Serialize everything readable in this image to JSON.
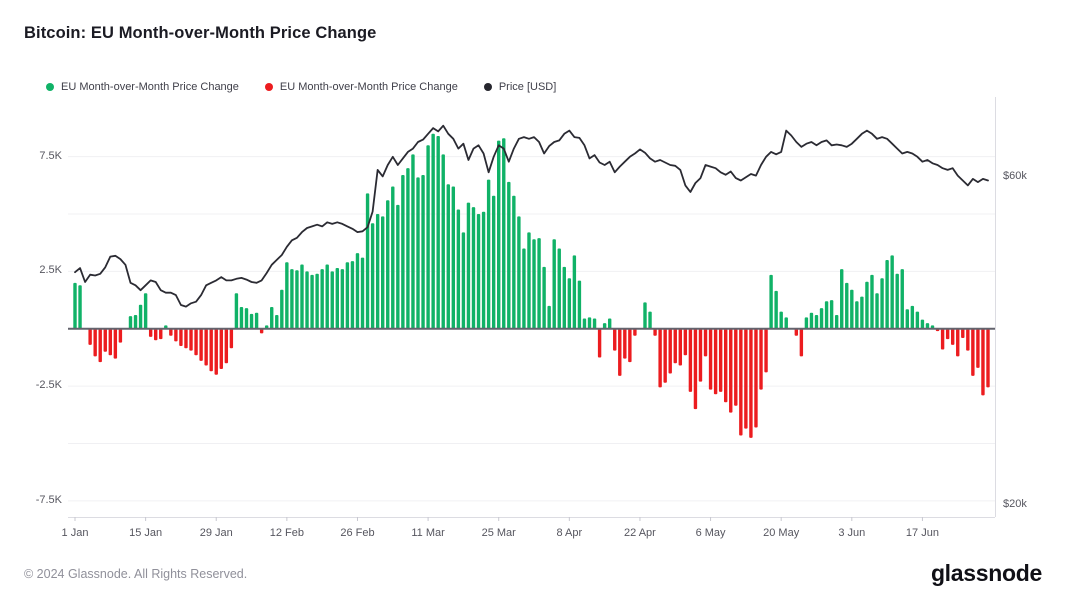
{
  "header": {
    "title": "Bitcoin: EU Month-over-Month Price Change"
  },
  "legend": [
    {
      "label": "EU Month-over-Month Price Change",
      "color": "#10b267"
    },
    {
      "label": "EU Month-over-Month Price Change",
      "color": "#ec1c1f"
    },
    {
      "label": "Price [USD]",
      "color": "#26262e"
    }
  ],
  "footer": {
    "copyright": "© 2024 Glassnode. All Rights Reserved.",
    "brand": "glassnode"
  },
  "chart_data": {
    "type": "bar+line",
    "title": "Bitcoin: EU Month-over-Month Price Change",
    "bar_series_name": "EU Month-over-Month Price Change",
    "line_series_name": "Price [USD]",
    "date_range": "1 Jan 2024 – 30 Jun 2024 (daily)",
    "grid": true,
    "legend_position": "top-left",
    "colors": {
      "positive": "#10b267",
      "negative": "#ec1c1f",
      "price_line": "#2b2b33",
      "zero_line": "#63636d",
      "gridline": "#f0f0f3",
      "axis_line": "#dcdce2",
      "tick": "#c8c8d0"
    },
    "left_axis": {
      "title": "MoM price change [USD]",
      "range": [
        -8.2,
        10.1
      ],
      "grid_values": [
        7.5,
        5,
        2.5,
        -2.5,
        -5,
        -7.5
      ],
      "ticks": [
        {
          "label": "7.5K",
          "value": 7.5
        },
        {
          "label": "2.5K",
          "value": 2.5
        },
        {
          "label": "-2.5K",
          "value": -2.5
        },
        {
          "label": "-7.5K",
          "value": -7.5
        }
      ]
    },
    "right_axis": {
      "title": "Price [USD]",
      "range": [
        18.5,
        69.8
      ],
      "ticks": [
        {
          "label": "$60k",
          "value": 60
        },
        {
          "label": "$20k",
          "value": 20
        }
      ]
    },
    "x_axis": {
      "ticks": [
        {
          "label": "1 Jan",
          "day": 0
        },
        {
          "label": "15 Jan",
          "day": 14
        },
        {
          "label": "29 Jan",
          "day": 28
        },
        {
          "label": "12 Feb",
          "day": 42
        },
        {
          "label": "26 Feb",
          "day": 56
        },
        {
          "label": "11 Mar",
          "day": 70
        },
        {
          "label": "25 Mar",
          "day": 84
        },
        {
          "label": "8 Apr",
          "day": 98
        },
        {
          "label": "22 Apr",
          "day": 112
        },
        {
          "label": "6 May",
          "day": 126
        },
        {
          "label": "20 May",
          "day": 140
        },
        {
          "label": "3 Jun",
          "day": 154
        },
        {
          "label": "17 Jun",
          "day": 168
        }
      ]
    },
    "bar_values_k": [
      2.0,
      1.9,
      0,
      -0.7,
      -1.2,
      -1.45,
      -1.0,
      -1.15,
      -1.3,
      -0.6,
      0,
      0.55,
      0.6,
      1.05,
      1.55,
      -0.35,
      -0.5,
      -0.45,
      0.15,
      -0.3,
      -0.55,
      -0.75,
      -0.85,
      -0.95,
      -1.15,
      -1.4,
      -1.6,
      -1.85,
      -2.0,
      -1.75,
      -1.5,
      -0.85,
      1.55,
      0.95,
      0.9,
      0.65,
      0.7,
      -0.2,
      0.15,
      0.95,
      0.6,
      1.7,
      2.9,
      2.6,
      2.55,
      2.8,
      2.5,
      2.35,
      2.4,
      2.6,
      2.8,
      2.5,
      2.65,
      2.6,
      2.9,
      2.95,
      3.3,
      3.1,
      5.9,
      4.6,
      5.0,
      4.9,
      5.6,
      6.2,
      5.4,
      6.7,
      7.0,
      7.6,
      6.6,
      6.7,
      8.0,
      8.5,
      8.4,
      7.6,
      6.3,
      6.2,
      5.2,
      4.2,
      5.5,
      5.3,
      5.0,
      5.1,
      6.5,
      5.8,
      8.2,
      8.3,
      6.4,
      5.8,
      4.9,
      3.5,
      4.2,
      3.9,
      3.95,
      2.7,
      1.0,
      3.9,
      3.5,
      2.7,
      2.2,
      3.2,
      2.1,
      0.45,
      0.5,
      0.45,
      -1.25,
      0.25,
      0.45,
      -0.95,
      -2.05,
      -1.3,
      -1.45,
      -0.3,
      0,
      1.15,
      0.75,
      -0.3,
      -2.55,
      -2.35,
      -1.95,
      -1.5,
      -1.6,
      -1.15,
      -2.75,
      -3.5,
      -2.3,
      -1.2,
      -2.65,
      -2.85,
      -2.75,
      -3.2,
      -3.65,
      -3.35,
      -4.65,
      -4.35,
      -4.75,
      -4.3,
      -2.65,
      -1.9,
      2.35,
      1.65,
      0.75,
      0.5,
      0,
      -0.3,
      -1.2,
      0.5,
      0.7,
      0.6,
      0.9,
      1.2,
      1.25,
      0.6,
      2.6,
      2.0,
      1.7,
      1.2,
      1.4,
      2.05,
      2.35,
      1.55,
      2.2,
      3.0,
      3.2,
      2.4,
      2.6,
      0.85,
      1.0,
      0.75,
      0.4,
      0.25,
      0.15,
      -0.1,
      -0.9,
      -0.45,
      -0.7,
      -1.2,
      -0.4,
      -0.95,
      -2.05,
      -1.7,
      -2.9,
      -2.55
    ],
    "price_usd_k": [
      48.4,
      48.9,
      47.2,
      48.1,
      48.0,
      48.2,
      49.0,
      50.3,
      50.4,
      50.0,
      49.3,
      47.1,
      46.8,
      46.2,
      46.8,
      47.4,
      47.2,
      46.2,
      45.9,
      45.9,
      45.6,
      44.4,
      44.2,
      44.6,
      44.8,
      45.6,
      46.8,
      47.1,
      47.4,
      47.8,
      47.4,
      47.4,
      47.6,
      47.7,
      47.5,
      47.2,
      47.1,
      47.4,
      48.3,
      49.3,
      49.9,
      50.5,
      51.5,
      52.3,
      52.6,
      53.3,
      53.8,
      54.0,
      54.2,
      54.0,
      54.5,
      54.3,
      54.5,
      54.3,
      54.0,
      53.7,
      53.3,
      53.4,
      53.9,
      55.8,
      60.9,
      60.1,
      61.5,
      62.5,
      61.5,
      62.3,
      63.1,
      63.5,
      64.3,
      64.6,
      65.3,
      66.0,
      65.6,
      66.3,
      65.3,
      64.7,
      63.5,
      64.1,
      62.1,
      63.5,
      63.9,
      62.9,
      60.6,
      62.5,
      63.9,
      63.5,
      61.9,
      63.5,
      64.7,
      64.9,
      64.7,
      64.9,
      64.3,
      62.9,
      63.8,
      64.3,
      64.5,
      65.3,
      65.7,
      64.9,
      64.8,
      63.9,
      62.3,
      62.7,
      61.8,
      61.5,
      61.9,
      60.6,
      61.3,
      61.9,
      62.5,
      62.9,
      63.4,
      63.0,
      62.3,
      61.9,
      62.1,
      61.8,
      61.5,
      61.4,
      60.9,
      59.0,
      58.2,
      59.3,
      59.9,
      61.5,
      61.3,
      61.1,
      60.6,
      60.3,
      60.7,
      59.9,
      59.6,
      60.0,
      60.4,
      60.2,
      61.5,
      62.5,
      63.1,
      62.8,
      63.1,
      65.7,
      65.1,
      64.3,
      63.7,
      64.1,
      64.3,
      63.9,
      64.3,
      64.5,
      63.9,
      64.0,
      63.9,
      63.7,
      64.1,
      64.7,
      65.3,
      65.7,
      65.3,
      64.7,
      64.9,
      64.7,
      64.1,
      63.5,
      62.9,
      63.1,
      62.9,
      62.5,
      61.9,
      62.1,
      61.7,
      61.5,
      61.1,
      60.9,
      61.1,
      60.2,
      59.6,
      59.0,
      59.8,
      59.4,
      59.8,
      59.6
    ]
  }
}
